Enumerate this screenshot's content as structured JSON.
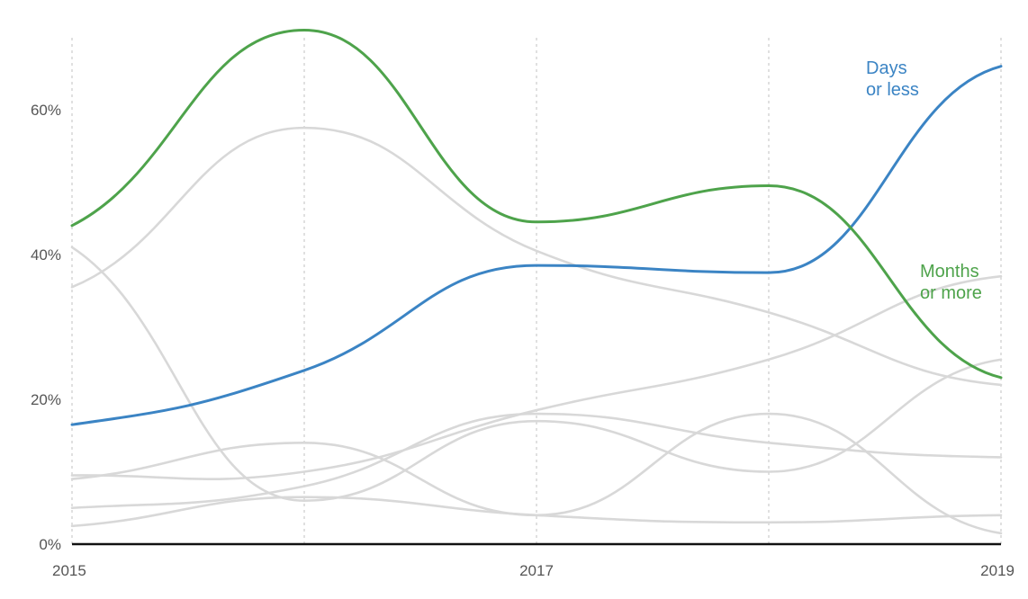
{
  "chart_data": {
    "type": "line",
    "x": [
      2015,
      2016,
      2017,
      2018,
      2019
    ],
    "x_ticks": [
      "2015",
      "2017",
      "2019"
    ],
    "y_ticks": [
      "0%",
      "20%",
      "40%",
      "60%"
    ],
    "y_tick_values": [
      0,
      20,
      40,
      60
    ],
    "xlim": [
      2015,
      2019
    ],
    "ylim": [
      0,
      70
    ],
    "grid": "vertical-dotted",
    "series": [
      {
        "name": "Days or less",
        "label_lines": [
          "Days",
          "or less"
        ],
        "color": "#3b84c4",
        "highlight": true,
        "values": [
          16.5,
          24,
          38.5,
          37.5,
          66
        ]
      },
      {
        "name": "Months or more",
        "label_lines": [
          "Months",
          "or more"
        ],
        "color": "#4ea34b",
        "highlight": true,
        "values": [
          44,
          71,
          44.5,
          49.5,
          23
        ]
      },
      {
        "color": "#d8d8d8",
        "highlight": false,
        "values": [
          35.5,
          57.5,
          40.5,
          32,
          22
        ]
      },
      {
        "color": "#d8d8d8",
        "highlight": false,
        "values": [
          41,
          6,
          17,
          10,
          25.5
        ]
      },
      {
        "color": "#d8d8d8",
        "highlight": false,
        "values": [
          9,
          14,
          4,
          18,
          1.5
        ]
      },
      {
        "color": "#d8d8d8",
        "highlight": false,
        "values": [
          9.5,
          10,
          18.5,
          25.5,
          37
        ]
      },
      {
        "color": "#d8d8d8",
        "highlight": false,
        "values": [
          5,
          8,
          18,
          14,
          12
        ]
      },
      {
        "color": "#d8d8d8",
        "highlight": false,
        "values": [
          2.5,
          6.5,
          4,
          3,
          4
        ]
      }
    ]
  }
}
